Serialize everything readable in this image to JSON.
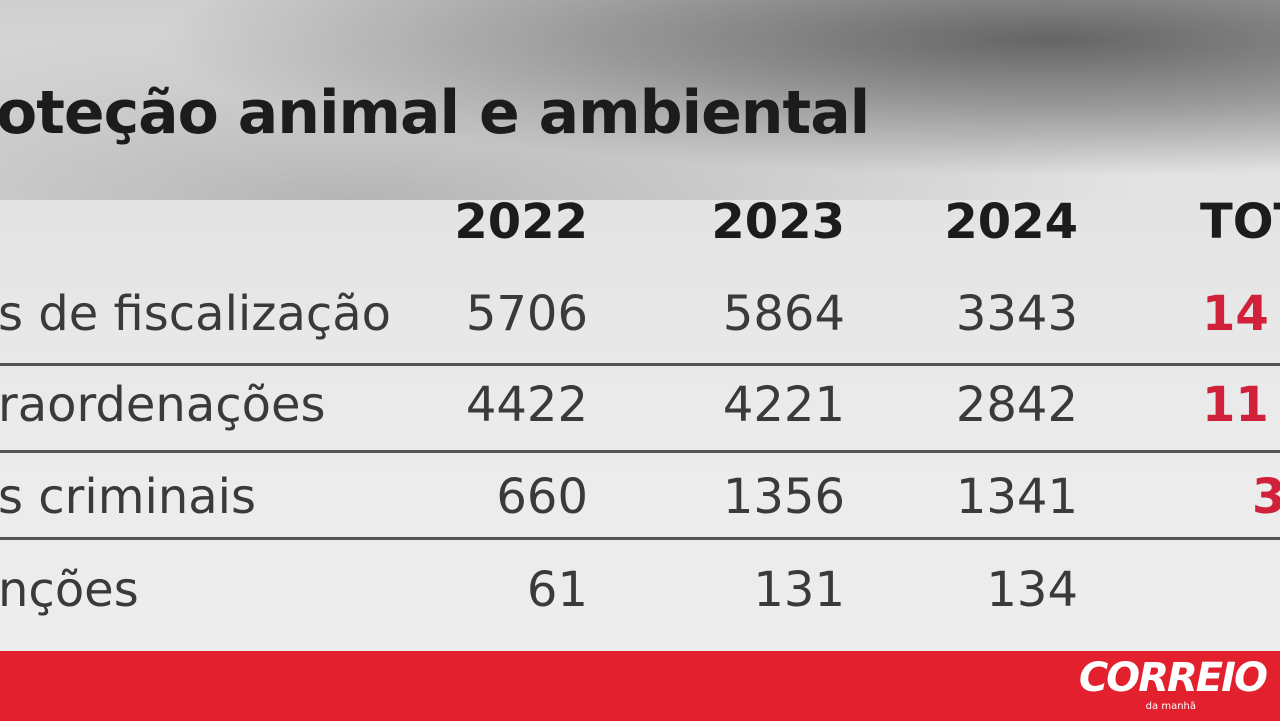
{
  "header": {
    "title": "oteção animal e ambiental"
  },
  "table": {
    "columns": [
      "2022",
      "2023",
      "2024",
      "TOT"
    ],
    "rows": [
      [
        "s de fiscalização",
        5706,
        5864,
        3343,
        "14"
      ],
      [
        "raordenações",
        4422,
        4221,
        2842,
        "11"
      ],
      [
        "s criminais",
        660,
        1356,
        1341,
        "3"
      ],
      [
        "nções",
        61,
        131,
        134
      ]
    ]
  },
  "footer": {
    "brand": "CORREIO",
    "tagline": "da manhã"
  }
}
